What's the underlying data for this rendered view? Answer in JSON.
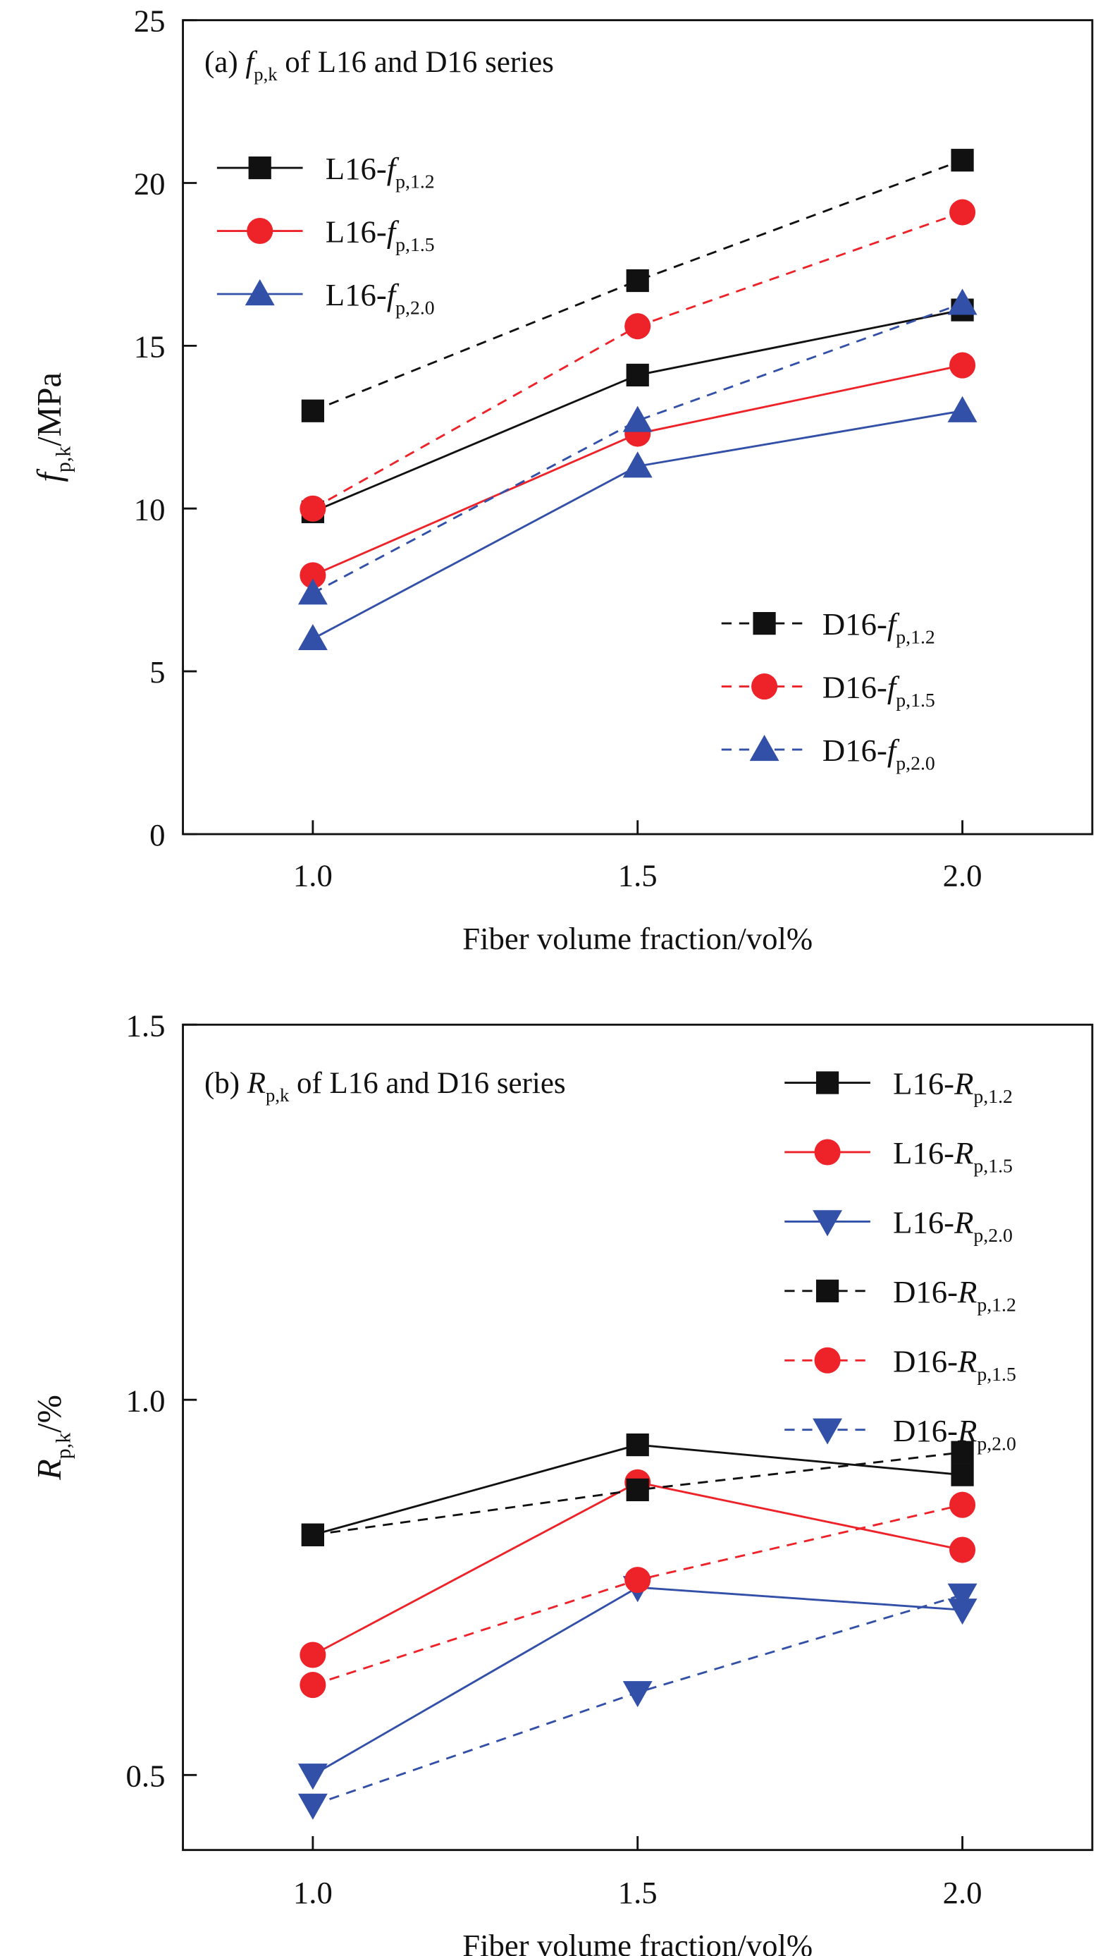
{
  "colors": {
    "black": "#111111",
    "red": "#ee2229",
    "blue": "#3350a8",
    "axis": "#111111"
  },
  "chart_data": [
    {
      "type": "line",
      "title": {
        "prefix": "(a) ",
        "sym": "f",
        "sub": "p,k",
        "suffix": " of L16 and D16 series"
      },
      "xlabel": "Fiber volume fraction/vol%",
      "ylabel": {
        "sym": "f",
        "sub": "p,k",
        "suffix": "/MPa"
      },
      "x": [
        1.0,
        1.5,
        2.0
      ],
      "xtick_labels": [
        "1.0",
        "1.5",
        "2.0"
      ],
      "xlim": [
        0.8,
        2.2
      ],
      "ylim": [
        0,
        25
      ],
      "yticks": [
        0,
        5,
        10,
        15,
        20,
        25
      ],
      "ytick_labels": [
        "0",
        "5",
        "10",
        "15",
        "20",
        "25"
      ],
      "grid": false,
      "legend_placement": [
        "top-left",
        "bottom-right"
      ],
      "series": [
        {
          "name": {
            "prefix": "L16-",
            "sym": "f",
            "sub": "p,1.2"
          },
          "color": "black",
          "marker": "square",
          "dash": false,
          "legend_group": 0,
          "values": [
            9.9,
            14.1,
            16.1
          ]
        },
        {
          "name": {
            "prefix": "L16-",
            "sym": "f",
            "sub": "p,1.5"
          },
          "color": "red",
          "marker": "circle",
          "dash": false,
          "legend_group": 0,
          "values": [
            7.95,
            12.3,
            14.4
          ]
        },
        {
          "name": {
            "prefix": "L16-",
            "sym": "f",
            "sub": "p,2.0"
          },
          "color": "blue",
          "marker": "triangle-up",
          "dash": false,
          "legend_group": 0,
          "values": [
            6.0,
            11.3,
            13.0
          ]
        },
        {
          "name": {
            "prefix": "D16-",
            "sym": "f",
            "sub": "p,1.2"
          },
          "color": "black",
          "marker": "square",
          "dash": true,
          "legend_group": 1,
          "values": [
            13.0,
            17.0,
            20.7
          ]
        },
        {
          "name": {
            "prefix": "D16-",
            "sym": "f",
            "sub": "p,1.5"
          },
          "color": "red",
          "marker": "circle",
          "dash": true,
          "legend_group": 1,
          "values": [
            10.0,
            15.6,
            19.1
          ]
        },
        {
          "name": {
            "prefix": "D16-",
            "sym": "f",
            "sub": "p,2.0"
          },
          "color": "blue",
          "marker": "triangle-up",
          "dash": true,
          "legend_group": 1,
          "values": [
            7.4,
            12.7,
            16.3
          ]
        }
      ]
    },
    {
      "type": "line",
      "title": {
        "prefix": "(b) ",
        "sym": "R",
        "sub": "p,k",
        "suffix": " of L16 and D16 series"
      },
      "xlabel": "Fiber volume fraction/vol%",
      "ylabel": {
        "sym": "R",
        "sub": "p,k",
        "suffix": "/%"
      },
      "x": [
        1.0,
        1.5,
        2.0
      ],
      "xtick_labels": [
        "1.0",
        "1.5",
        "2.0"
      ],
      "xlim": [
        0.8,
        2.2
      ],
      "ylim": [
        0.4,
        1.5
      ],
      "yticks": [
        0.5,
        1.0,
        1.5
      ],
      "ytick_labels": [
        "0.5",
        "1.0",
        "1.5"
      ],
      "grid": false,
      "legend_placement": [
        "top-right"
      ],
      "series": [
        {
          "name": {
            "prefix": "L16-",
            "sym": "R",
            "sub": "p,1.2"
          },
          "color": "black",
          "marker": "square",
          "dash": false,
          "legend_group": 0,
          "values": [
            0.82,
            0.94,
            0.9
          ]
        },
        {
          "name": {
            "prefix": "L16-",
            "sym": "R",
            "sub": "p,1.5"
          },
          "color": "red",
          "marker": "circle",
          "dash": false,
          "legend_group": 0,
          "values": [
            0.66,
            0.89,
            0.8
          ]
        },
        {
          "name": {
            "prefix": "L16-",
            "sym": "R",
            "sub": "p,2.0"
          },
          "color": "blue",
          "marker": "triangle-down",
          "dash": false,
          "legend_group": 0,
          "values": [
            0.5,
            0.75,
            0.72
          ]
        },
        {
          "name": {
            "prefix": "D16-",
            "sym": "R",
            "sub": "p,1.2"
          },
          "color": "black",
          "marker": "square",
          "dash": true,
          "legend_group": 0,
          "values": [
            0.82,
            0.88,
            0.93
          ]
        },
        {
          "name": {
            "prefix": "D16-",
            "sym": "R",
            "sub": "p,1.5"
          },
          "color": "red",
          "marker": "circle",
          "dash": true,
          "legend_group": 0,
          "values": [
            0.62,
            0.76,
            0.86
          ]
        },
        {
          "name": {
            "prefix": "D16-",
            "sym": "R",
            "sub": "p,2.0"
          },
          "color": "blue",
          "marker": "triangle-down",
          "dash": true,
          "legend_group": 0,
          "values": [
            0.46,
            0.61,
            0.74
          ]
        }
      ]
    }
  ]
}
